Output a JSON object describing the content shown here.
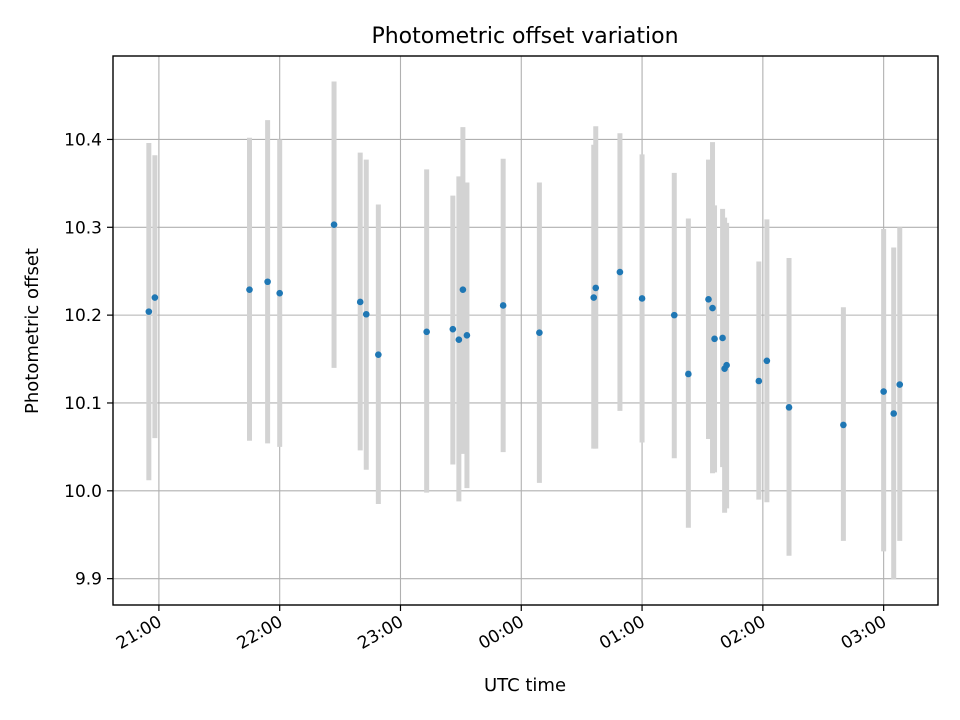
{
  "chart_data": {
    "type": "scatter",
    "title": "Photometric offset variation",
    "xlabel": "UTC time",
    "ylabel": "Photometric offset",
    "grid": true,
    "ylim": [
      9.87,
      10.495
    ],
    "xlim_hours": [
      -3.38,
      3.45
    ],
    "y_ticks": [
      {
        "value": 9.9,
        "label": "9.9"
      },
      {
        "value": 10.0,
        "label": "10.0"
      },
      {
        "value": 10.1,
        "label": "10.1"
      },
      {
        "value": 10.2,
        "label": "10.2"
      },
      {
        "value": 10.3,
        "label": "10.3"
      },
      {
        "value": 10.4,
        "label": "10.4"
      }
    ],
    "x_ticks": [
      {
        "value": -3,
        "label": "21:00"
      },
      {
        "value": -2,
        "label": "22:00"
      },
      {
        "value": -1,
        "label": "23:00"
      },
      {
        "value": 0,
        "label": "00:00"
      },
      {
        "value": 1,
        "label": "01:00"
      },
      {
        "value": 2,
        "label": "02:00"
      },
      {
        "value": 3,
        "label": "03:00"
      }
    ],
    "colors": {
      "points": "#1f77b4",
      "errorbars": "#d3d3d3",
      "grid": "#b0b0b0"
    },
    "points": [
      {
        "time": "20:55",
        "y": 10.204,
        "lo": 10.012,
        "hi": 10.396
      },
      {
        "time": "20:58",
        "y": 10.22,
        "lo": 10.06,
        "hi": 10.382
      },
      {
        "time": "21:45",
        "y": 10.229,
        "lo": 10.057,
        "hi": 10.402
      },
      {
        "time": "21:54",
        "y": 10.238,
        "lo": 10.054,
        "hi": 10.422
      },
      {
        "time": "22:00",
        "y": 10.225,
        "lo": 10.05,
        "hi": 10.4
      },
      {
        "time": "22:27",
        "y": 10.303,
        "lo": 10.14,
        "hi": 10.466
      },
      {
        "time": "22:40",
        "y": 10.215,
        "lo": 10.046,
        "hi": 10.385
      },
      {
        "time": "22:43",
        "y": 10.201,
        "lo": 10.024,
        "hi": 10.377
      },
      {
        "time": "22:49",
        "y": 10.155,
        "lo": 9.985,
        "hi": 10.326
      },
      {
        "time": "23:13",
        "y": 10.181,
        "lo": 9.998,
        "hi": 10.366
      },
      {
        "time": "23:26",
        "y": 10.184,
        "lo": 10.03,
        "hi": 10.336
      },
      {
        "time": "23:29",
        "y": 10.172,
        "lo": 9.988,
        "hi": 10.358
      },
      {
        "time": "23:31",
        "y": 10.229,
        "lo": 10.042,
        "hi": 10.414
      },
      {
        "time": "23:33",
        "y": 10.177,
        "lo": 10.003,
        "hi": 10.351
      },
      {
        "time": "23:51",
        "y": 10.211,
        "lo": 10.044,
        "hi": 10.378
      },
      {
        "time": "00:09",
        "y": 10.18,
        "lo": 10.009,
        "hi": 10.351
      },
      {
        "time": "00:36",
        "y": 10.22,
        "lo": 10.048,
        "hi": 10.394
      },
      {
        "time": "00:37",
        "y": 10.231,
        "lo": 10.048,
        "hi": 10.415
      },
      {
        "time": "00:49",
        "y": 10.249,
        "lo": 10.091,
        "hi": 10.407
      },
      {
        "time": "01:00",
        "y": 10.219,
        "lo": 10.055,
        "hi": 10.383
      },
      {
        "time": "01:16",
        "y": 10.2,
        "lo": 10.037,
        "hi": 10.362
      },
      {
        "time": "01:23",
        "y": 10.133,
        "lo": 9.958,
        "hi": 10.31
      },
      {
        "time": "01:33",
        "y": 10.218,
        "lo": 10.059,
        "hi": 10.377
      },
      {
        "time": "01:35",
        "y": 10.208,
        "lo": 10.02,
        "hi": 10.397
      },
      {
        "time": "01:36",
        "y": 10.173,
        "lo": 10.021,
        "hi": 10.325
      },
      {
        "time": "01:40",
        "y": 10.174,
        "lo": 10.027,
        "hi": 10.321
      },
      {
        "time": "01:41",
        "y": 10.139,
        "lo": 9.975,
        "hi": 10.311
      },
      {
        "time": "01:42",
        "y": 10.143,
        "lo": 9.98,
        "hi": 10.305
      },
      {
        "time": "01:58",
        "y": 10.125,
        "lo": 9.99,
        "hi": 10.261
      },
      {
        "time": "02:02",
        "y": 10.148,
        "lo": 9.987,
        "hi": 10.309
      },
      {
        "time": "02:13",
        "y": 10.095,
        "lo": 9.926,
        "hi": 10.265
      },
      {
        "time": "02:40",
        "y": 10.075,
        "lo": 9.943,
        "hi": 10.209
      },
      {
        "time": "03:00",
        "y": 10.113,
        "lo": 9.931,
        "hi": 10.298
      },
      {
        "time": "03:05",
        "y": 10.088,
        "lo": 9.899,
        "hi": 10.277
      },
      {
        "time": "03:08",
        "y": 10.121,
        "lo": 9.943,
        "hi": 10.3
      }
    ]
  }
}
